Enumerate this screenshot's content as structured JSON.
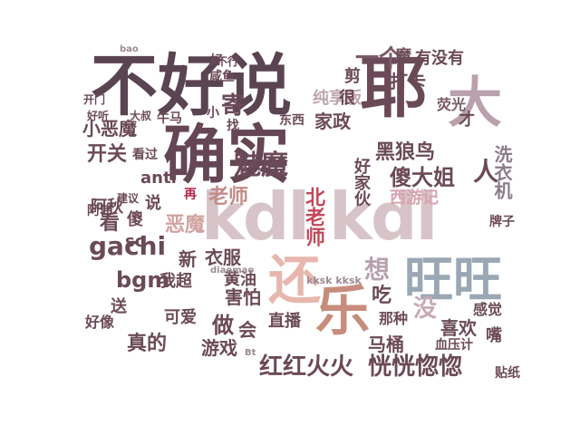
{
  "wordcloud": {
    "title": "",
    "words": [
      {
        "id": "w1",
        "text": "不好说",
        "color": "#5a4452"
      },
      {
        "id": "w2",
        "text": "耶",
        "color": "#6b4a57"
      },
      {
        "id": "w3",
        "text": "大",
        "color": "#b9a2ad"
      },
      {
        "id": "w4",
        "text": "确实",
        "color": "#654654"
      },
      {
        "id": "w5",
        "text": "kdl kdl",
        "color": "#d7c4c9"
      },
      {
        "id": "w6",
        "text": "还",
        "color": "#e7b7ad"
      },
      {
        "id": "w7",
        "text": "乐",
        "color": "#c78d7c"
      },
      {
        "id": "w8",
        "text": "旺旺",
        "color": "#9aa7b4"
      },
      {
        "id": "w9",
        "text": "一个",
        "color": "#7a5c69"
      },
      {
        "id": "w10",
        "text": "魔",
        "color": "#6b4a57"
      },
      {
        "id": "w11",
        "text": "有没有",
        "color": "#6b4a57"
      },
      {
        "id": "w12",
        "text": "打卡",
        "color": "#6b4a57"
      },
      {
        "id": "w13",
        "text": "荧光",
        "color": "#7a5c69"
      },
      {
        "id": "w14",
        "text": "纯享版",
        "color": "#bda6b0"
      },
      {
        "id": "w15",
        "text": "寄",
        "color": "#6b4a57"
      },
      {
        "id": "w16",
        "text": "家政",
        "color": "#6b4a57"
      },
      {
        "id": "w17",
        "text": "小恶魔",
        "color": "#6b4a57"
      },
      {
        "id": "w18",
        "text": "开关",
        "color": "#6b4a57"
      },
      {
        "id": "w19",
        "text": "看过",
        "color": "#6b4a57"
      },
      {
        "id": "w20",
        "text": "anti",
        "color": "#6b4a57"
      },
      {
        "id": "w21",
        "text": "魅魔",
        "color": "#6b4a57"
      },
      {
        "id": "w22",
        "text": "黑狼鸟",
        "color": "#6b4a57"
      },
      {
        "id": "w23",
        "text": "傻大姐",
        "color": "#6b4a57"
      },
      {
        "id": "w24",
        "text": "人",
        "color": "#6b4a57"
      },
      {
        "id": "w25",
        "text": "老师",
        "color": "#c38c88"
      },
      {
        "id": "w26",
        "text": "北老师",
        "color": "#c4485a"
      },
      {
        "id": "w27",
        "text": "西游记",
        "color": "#d7a3b0"
      },
      {
        "id": "w28",
        "text": "洗衣机",
        "color": "#8c7c86"
      },
      {
        "id": "w29",
        "text": "阿秋",
        "color": "#6b4a57"
      },
      {
        "id": "w30",
        "text": "傻",
        "color": "#6b4a57"
      },
      {
        "id": "w31",
        "text": "看",
        "color": "#6b4a57"
      },
      {
        "id": "w32",
        "text": "恶魔",
        "color": "#d1a3a0"
      },
      {
        "id": "w33",
        "text": "说",
        "color": "#6b4a57"
      },
      {
        "id": "w34",
        "text": "再",
        "color": "#b0264a"
      },
      {
        "id": "w35",
        "text": "gachi",
        "color": "#6b4a57"
      },
      {
        "id": "w36",
        "text": "sc",
        "color": "#6b4a57"
      },
      {
        "id": "w37",
        "text": "新",
        "color": "#6b4a57"
      },
      {
        "id": "w38",
        "text": "衣服",
        "color": "#6b4a57"
      },
      {
        "id": "w39",
        "text": "想",
        "color": "#b8a2ad"
      },
      {
        "id": "w40",
        "text": "吃",
        "color": "#6b4a57"
      },
      {
        "id": "w41",
        "text": "没",
        "color": "#caa9b5"
      },
      {
        "id": "w42",
        "text": "bgm",
        "color": "#6b4a57"
      },
      {
        "id": "w43",
        "text": "我超",
        "color": "#6b4a57"
      },
      {
        "id": "w44",
        "text": "黄油",
        "color": "#6b4a57"
      },
      {
        "id": "w45",
        "text": "害怕",
        "color": "#6b4a57"
      },
      {
        "id": "w46",
        "text": "可爱",
        "color": "#6b4a57"
      },
      {
        "id": "w47",
        "text": "好像",
        "color": "#6b4a57"
      },
      {
        "id": "w48",
        "text": "送",
        "color": "#6b4a57"
      },
      {
        "id": "w49",
        "text": "真的",
        "color": "#6b4a57"
      },
      {
        "id": "w50",
        "text": "做",
        "color": "#6b4a57"
      },
      {
        "id": "w51",
        "text": "会",
        "color": "#6b4a57"
      },
      {
        "id": "w52",
        "text": "直播",
        "color": "#6b4a57"
      },
      {
        "id": "w53",
        "text": "那种",
        "color": "#6b4a57"
      },
      {
        "id": "w54",
        "text": "喜欢",
        "color": "#6b4a57"
      },
      {
        "id": "w55",
        "text": "感觉",
        "color": "#6b4a57"
      },
      {
        "id": "w56",
        "text": "游戏",
        "color": "#6b4a57"
      },
      {
        "id": "w57",
        "text": "马桶",
        "color": "#6b4a57"
      },
      {
        "id": "w58",
        "text": "红红火火",
        "color": "#6b4a57"
      },
      {
        "id": "w59",
        "text": "恍恍惚惚",
        "color": "#6b4a57"
      },
      {
        "id": "w60",
        "text": "贴纸",
        "color": "#6b4a57"
      },
      {
        "id": "w61",
        "text": "好家伙",
        "color": "#6b4a57"
      },
      {
        "id": "w62",
        "text": "建议",
        "color": "#6b4a57"
      },
      {
        "id": "w63",
        "text": "牛马",
        "color": "#6b4a57"
      },
      {
        "id": "w64",
        "text": "剪",
        "color": "#6b4a57"
      },
      {
        "id": "w65",
        "text": "才",
        "color": "#6b4a57"
      },
      {
        "id": "w66",
        "text": "嘴",
        "color": "#6b4a57"
      },
      {
        "id": "w67",
        "text": "牌子",
        "color": "#6b4a57"
      },
      {
        "id": "w68",
        "text": "血压计",
        "color": "#6b4a57"
      },
      {
        "id": "w69",
        "text": "阿伟",
        "color": "#6b4a57"
      },
      {
        "id": "w70",
        "text": "好",
        "color": "#6b4a57"
      },
      {
        "id": "w71",
        "text": "不行",
        "color": "#6b4a57"
      },
      {
        "id": "w72",
        "text": "咸鱼",
        "color": "#6b4a57"
      },
      {
        "id": "w73",
        "text": "东西",
        "color": "#6b4a57"
      },
      {
        "id": "w74",
        "text": "很",
        "color": "#6b4a57"
      },
      {
        "id": "w75",
        "text": "小",
        "color": "#6b4a57"
      },
      {
        "id": "w76",
        "text": "找",
        "color": "#6b4a57"
      },
      {
        "id": "w77",
        "text": "大叔",
        "color": "#6b4a57"
      },
      {
        "id": "w78",
        "text": "好听",
        "color": "#6b4a57"
      },
      {
        "id": "w79",
        "text": "开门",
        "color": "#6b4a57"
      },
      {
        "id": "w80",
        "text": "kksk kksk",
        "color": "#9c8a93"
      },
      {
        "id": "w81",
        "text": "diaomao",
        "color": "#9c8a93"
      },
      {
        "id": "w82",
        "text": "Bt",
        "color": "#9c8a93"
      },
      {
        "id": "w83",
        "text": "bao",
        "color": "#9c8a93"
      }
    ]
  }
}
